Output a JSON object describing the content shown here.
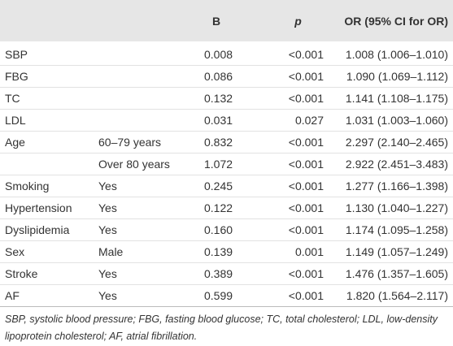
{
  "table": {
    "header": {
      "b": "B",
      "p": "p",
      "or": "OR (95% CI for OR)"
    },
    "rows": [
      {
        "variable": "SBP",
        "b": "0.008",
        "p": "<0.001",
        "or": "1.008 (1.006–1.010)"
      },
      {
        "variable": "FBG",
        "b": "0.086",
        "p": "<0.001",
        "or": "1.090 (1.069–1.112)"
      },
      {
        "variable": "TC",
        "b": "0.132",
        "p": "<0.001",
        "or": "1.141 (1.108–1.175)"
      },
      {
        "variable": "LDL",
        "b": "0.031",
        "p": "0.027",
        "or": "1.031 (1.003–1.060)"
      },
      {
        "variable": "Age",
        "group": "60–79 years",
        "b": "0.832",
        "p": "<0.001",
        "or": "2.297 (2.140–2.465)"
      },
      {
        "group": "Over 80 years",
        "b": "1.072",
        "p": "<0.001",
        "or": "2.922 (2.451–3.483)"
      },
      {
        "variable": "Smoking",
        "group": "Yes",
        "b": "0.245",
        "p": "<0.001",
        "or": "1.277 (1.166–1.398)"
      },
      {
        "variable": "Hypertension",
        "group": "Yes",
        "b": "0.122",
        "p": "<0.001",
        "or": "1.130 (1.040–1.227)"
      },
      {
        "variable": "Dyslipidemia",
        "group": "Yes",
        "b": "0.160",
        "p": "<0.001",
        "or": "1.174 (1.095–1.258)"
      },
      {
        "variable": "Sex",
        "group": "Male",
        "b": "0.139",
        "p": "0.001",
        "or": "1.149 (1.057–1.249)"
      },
      {
        "variable": "Stroke",
        "group": "Yes",
        "b": "0.389",
        "p": "<0.001",
        "or": "1.476 (1.357–1.605)"
      },
      {
        "variable": "AF",
        "group": "Yes",
        "b": "0.599",
        "p": "<0.001",
        "or": "1.820 (1.564–2.117)"
      }
    ],
    "footnote": "SBP, systolic blood pressure; FBG, fasting blood glucose; TC, total cholesterol; LDL, low-density lipoprotein cholesterol; AF, atrial fibrillation."
  }
}
